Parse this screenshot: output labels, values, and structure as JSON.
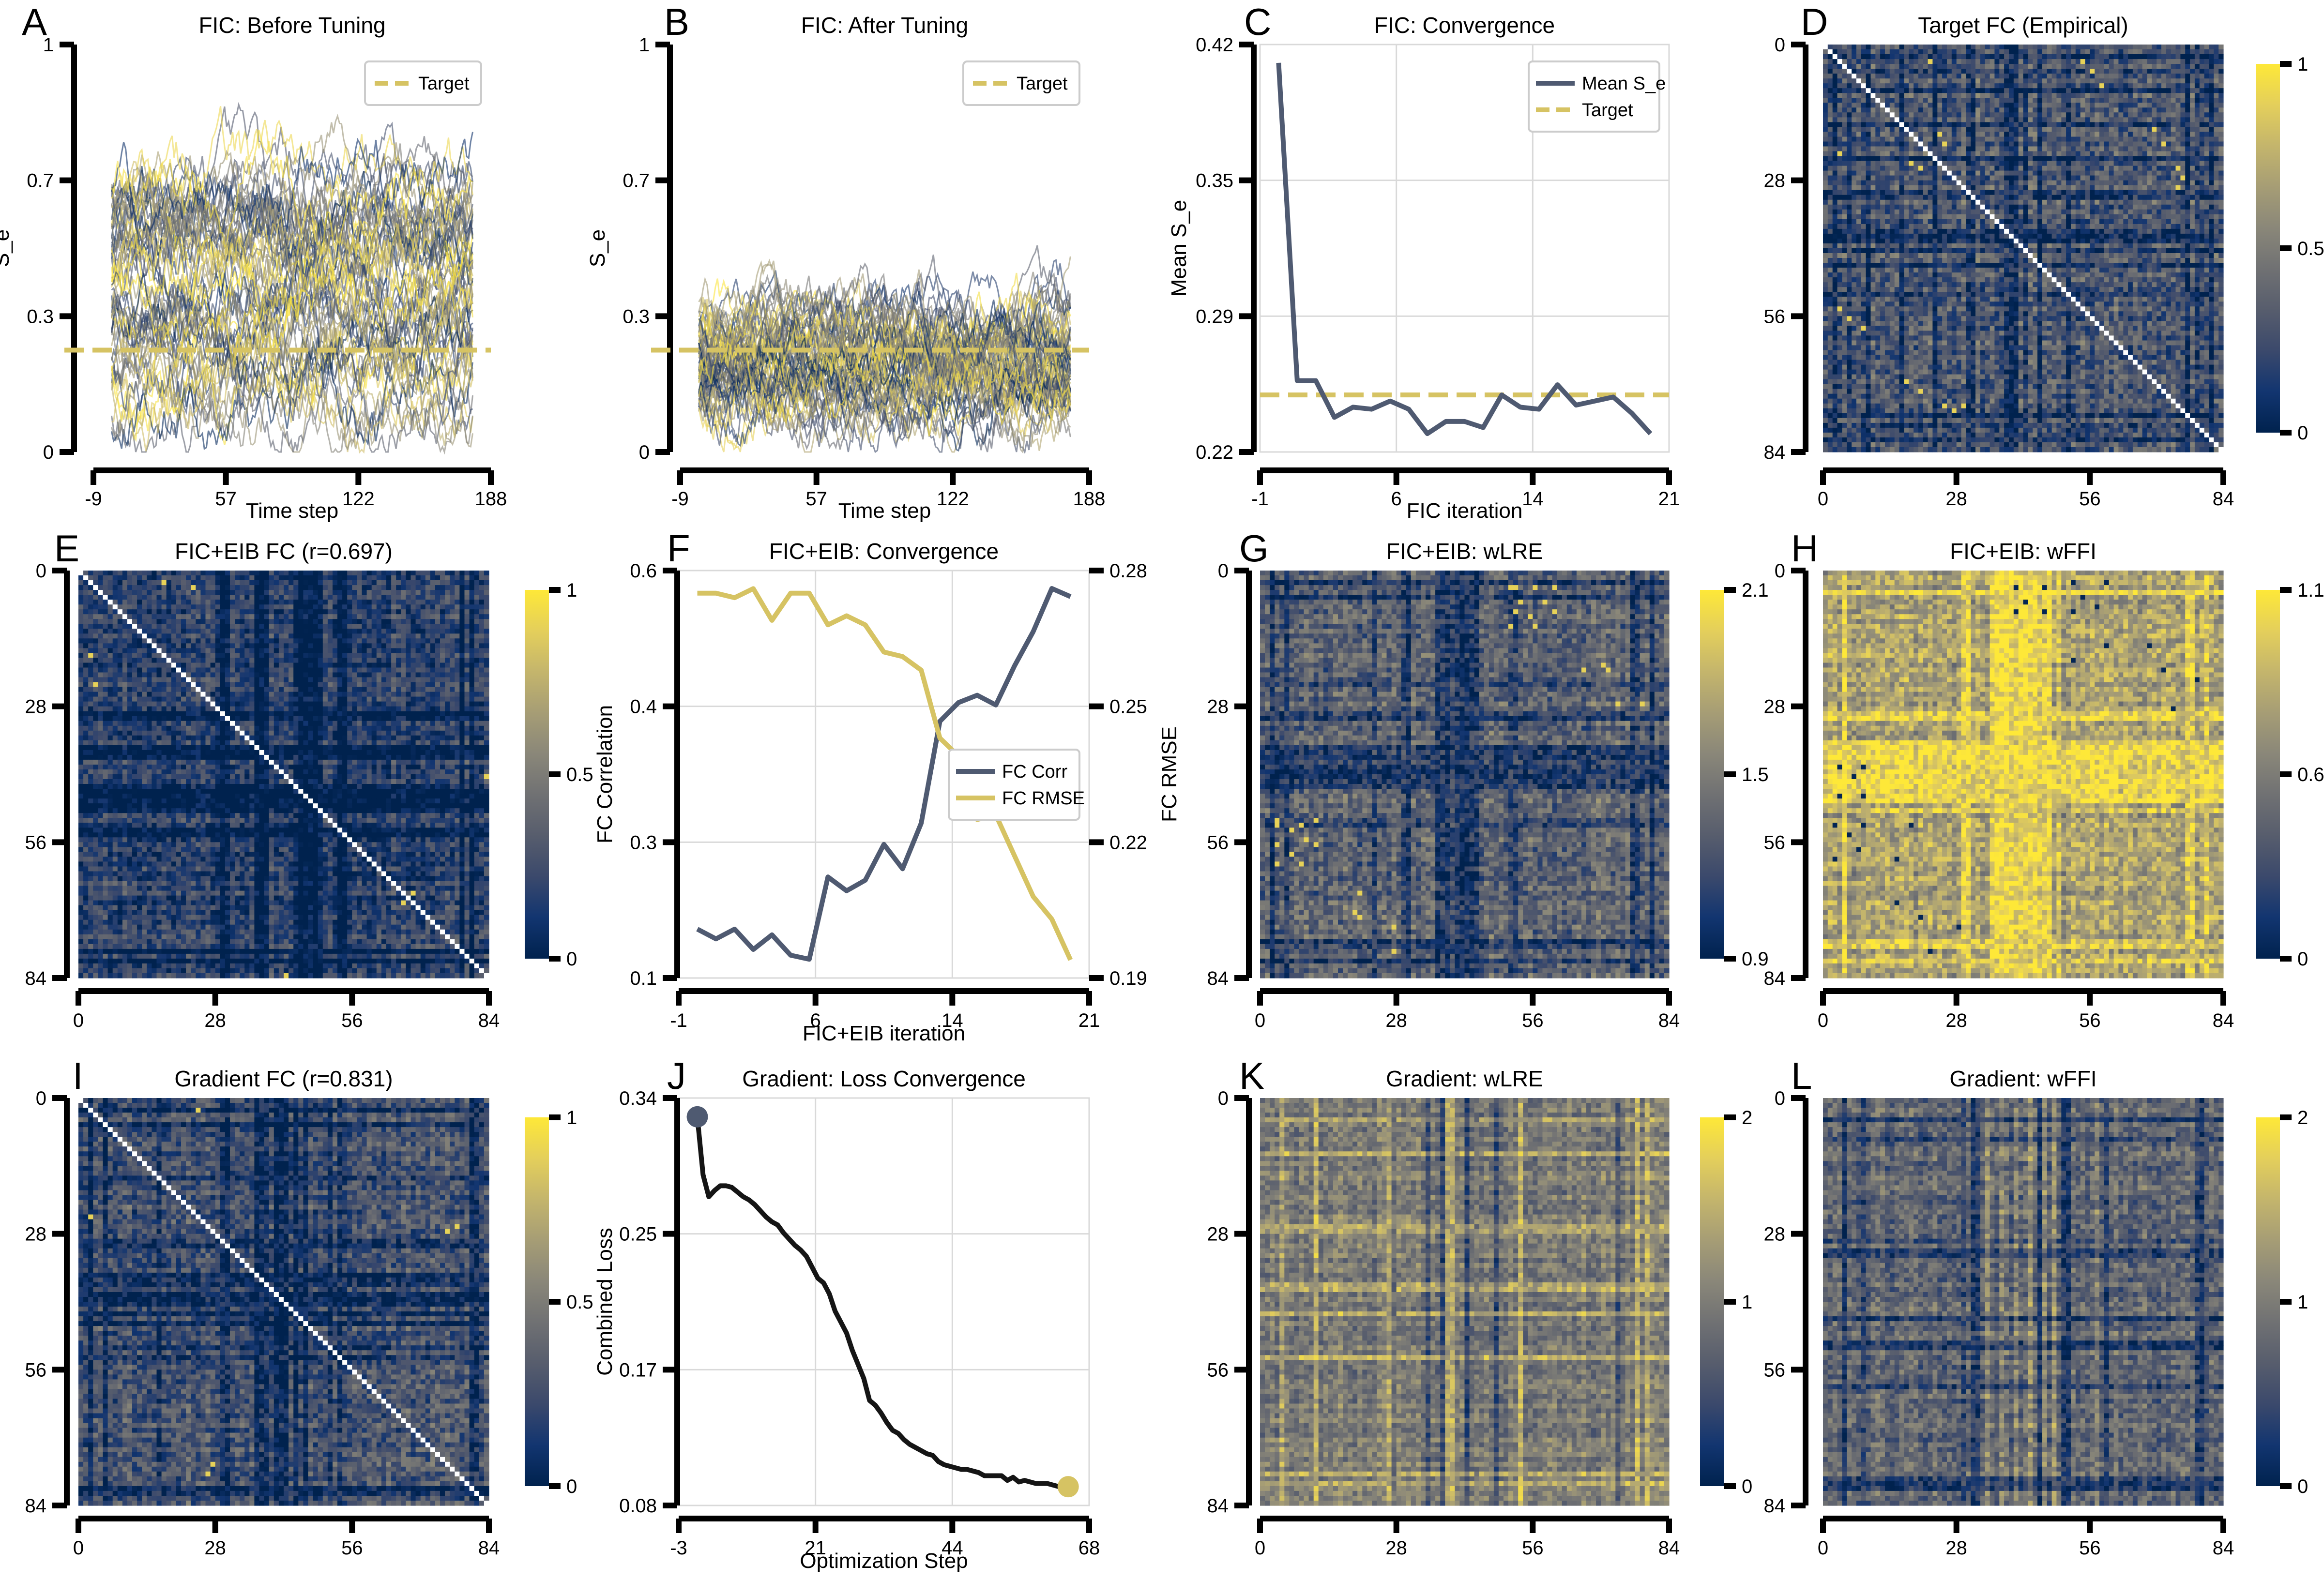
{
  "figure": {
    "panels": [
      "A",
      "B",
      "C",
      "D",
      "E",
      "F",
      "G",
      "H",
      "I",
      "J",
      "K",
      "L"
    ]
  },
  "colors": {
    "dark_slate": "#4f5a71",
    "gold": "#d6c363",
    "black_line": "#151515",
    "grid": "#d9d9d9",
    "cividis_stops": [
      "#00224e",
      "#123570",
      "#3b496c",
      "#575d6d",
      "#707173",
      "#8a8779",
      "#a69d75",
      "#c4b56c",
      "#e4cf5b",
      "#fee838"
    ]
  },
  "chart_data": [
    {
      "id": "A",
      "type": "line",
      "title": "FIC: Before Tuning",
      "xlabel": "Time step",
      "ylabel": "S_e",
      "xticks": [
        "-9",
        "57",
        "122",
        "188"
      ],
      "xlim": [
        -9,
        188
      ],
      "yticks": [
        "0",
        "0.3",
        "0.7",
        "1"
      ],
      "ylim": [
        0,
        1
      ],
      "n_traces": 68,
      "n_steps": 180,
      "trace_mean_range": [
        0.1,
        0.68
      ],
      "trace_noise": 0.045,
      "target": 0.25,
      "legend": [
        {
          "label": "Target",
          "style": "dashed",
          "color": "#d6c363"
        }
      ],
      "legend_position": "top-right",
      "grid": false
    },
    {
      "id": "B",
      "type": "line",
      "title": "FIC: After Tuning",
      "xlabel": "Time step",
      "ylabel": "S_e",
      "xticks": [
        "-9",
        "57",
        "122",
        "188"
      ],
      "xlim": [
        -9,
        188
      ],
      "yticks": [
        "0",
        "0.3",
        "0.7",
        "1"
      ],
      "ylim": [
        0,
        1
      ],
      "n_traces": 68,
      "n_steps": 180,
      "trace_mean_range": [
        0.12,
        0.33
      ],
      "trace_noise": 0.04,
      "target": 0.25,
      "legend": [
        {
          "label": "Target",
          "style": "dashed",
          "color": "#d6c363"
        }
      ],
      "legend_position": "top-right",
      "grid": false
    },
    {
      "id": "C",
      "type": "line",
      "title": "FIC: Convergence",
      "xlabel": "FIC iteration",
      "ylabel": "Mean S_e",
      "xticks": [
        "-1",
        "6",
        "14",
        "21"
      ],
      "xlim": [
        -1,
        21
      ],
      "yticks": [
        "0.22",
        "0.29",
        "0.35",
        "0.42"
      ],
      "ylim": [
        0.22,
        0.42
      ],
      "grid": true,
      "series": [
        {
          "name": "Mean S_e",
          "color": "#4f5a71",
          "style": "solid",
          "x": [
            0,
            1,
            2,
            3,
            4,
            5,
            6,
            7,
            8,
            9,
            10,
            11,
            12,
            13,
            14,
            15,
            16,
            17,
            18,
            19,
            20
          ],
          "values": [
            0.411,
            0.255,
            0.255,
            0.237,
            0.242,
            0.241,
            0.245,
            0.241,
            0.229,
            0.235,
            0.235,
            0.232,
            0.248,
            0.242,
            0.241,
            0.253,
            0.243,
            0.245,
            0.247,
            0.239,
            0.229
          ]
        },
        {
          "name": "Target",
          "color": "#d6c363",
          "style": "dashed",
          "value": 0.248
        }
      ],
      "legend_position": "top-right"
    },
    {
      "id": "D",
      "type": "heatmap",
      "title": "Target FC (Empirical)",
      "xticks": [
        "0",
        "28",
        "56",
        "84"
      ],
      "yticks": [
        "0",
        "28",
        "56",
        "84"
      ],
      "size": 84,
      "vmin": 0,
      "vmax": 1,
      "colorbar_ticks": [
        "0",
        "0.5",
        "1"
      ],
      "colormap": "cividis",
      "white_diagonal": true,
      "base": 0.33,
      "noise": 0.2,
      "seed": 11,
      "dark_bands": [
        2,
        5,
        9,
        16,
        23,
        30,
        31,
        38,
        39,
        40,
        42,
        45,
        51,
        76,
        78,
        81
      ],
      "bright_spots": [
        [
          3,
          22
        ],
        [
          18,
          24
        ],
        [
          20,
          25
        ],
        [
          25,
          74
        ],
        [
          27,
          75
        ],
        [
          54,
          3
        ],
        [
          56,
          5
        ],
        [
          58,
          8
        ],
        [
          69,
          17
        ],
        [
          71,
          20
        ],
        [
          74,
          29
        ]
      ]
    },
    {
      "id": "E",
      "type": "heatmap",
      "title": "FIC+EIB FC (r=0.697)",
      "xticks": [
        "0",
        "28",
        "56",
        "84"
      ],
      "yticks": [
        "0",
        "28",
        "56",
        "84"
      ],
      "size": 84,
      "vmin": 0,
      "vmax": 1,
      "colorbar_ticks": [
        "0",
        "0.5",
        "1"
      ],
      "colormap": "cividis",
      "white_diagonal": true,
      "base": 0.2,
      "noise": 0.17,
      "seed": 23,
      "dark_bands": [
        29,
        30,
        36,
        37,
        38,
        44,
        45,
        46,
        47,
        48,
        49,
        53,
        54,
        78,
        80
      ],
      "bright_spots": [
        [
          2,
          17
        ],
        [
          23,
          3
        ],
        [
          42,
          83
        ],
        [
          68,
          66
        ],
        [
          84,
          31
        ]
      ]
    },
    {
      "id": "F",
      "type": "line",
      "title": "FIC+EIB: Convergence",
      "xlabel": "FIC+EIB iteration",
      "ylabel": "FC Correlation",
      "ylabel_right": "FC RMSE",
      "xticks": [
        "-1",
        "6",
        "14",
        "21"
      ],
      "xlim": [
        -1,
        21
      ],
      "yticks": [
        "0.1",
        "0.3",
        "0.4",
        "0.6"
      ],
      "ylim": [
        0.1,
        0.6
      ],
      "yticks_right": [
        "0.19",
        "0.22",
        "0.25",
        "0.28"
      ],
      "ylim_right": [
        0.19,
        0.28
      ],
      "grid": true,
      "series": [
        {
          "name": "FC Corr",
          "axis": "left",
          "color": "#4f5a71",
          "x": [
            0,
            1,
            2,
            3,
            4,
            5,
            6,
            7,
            8,
            9,
            10,
            11,
            12,
            13,
            14,
            15,
            16,
            17,
            18,
            19,
            20
          ],
          "values": [
            0.16,
            0.148,
            0.16,
            0.135,
            0.153,
            0.128,
            0.123,
            0.224,
            0.207,
            0.22,
            0.264,
            0.234,
            0.29,
            0.415,
            0.438,
            0.447,
            0.435,
            0.483,
            0.525,
            0.578,
            0.568
          ]
        },
        {
          "name": "FC RMSE",
          "axis": "right",
          "color": "#d6c363",
          "x": [
            0,
            1,
            2,
            3,
            4,
            5,
            6,
            7,
            8,
            9,
            10,
            11,
            12,
            13,
            14,
            15,
            16,
            17,
            18,
            19,
            20
          ],
          "values": [
            0.275,
            0.275,
            0.274,
            0.276,
            0.269,
            0.275,
            0.275,
            0.268,
            0.27,
            0.268,
            0.262,
            0.261,
            0.258,
            0.243,
            0.239,
            0.225,
            0.226,
            0.217,
            0.208,
            0.203,
            0.194
          ]
        }
      ],
      "legend_position": "center-right"
    },
    {
      "id": "G",
      "type": "heatmap",
      "title": "FIC+EIB: wLRE",
      "xticks": [
        "0",
        "28",
        "56",
        "84"
      ],
      "yticks": [
        "0",
        "28",
        "56",
        "84"
      ],
      "size": 84,
      "vmin": 0.9,
      "vmax": 2.1,
      "colorbar_ticks": [
        "0.9",
        "1.5",
        "2.1"
      ],
      "colormap": "cividis",
      "white_diagonal": false,
      "base": 0.38,
      "noise": 0.18,
      "seed": 37,
      "dark_bands": [
        2,
        5,
        23,
        29,
        30,
        36,
        37,
        38,
        39,
        40,
        41,
        42,
        43,
        44,
        51,
        52,
        76,
        77,
        80
      ],
      "bright_spots": [
        [
          3,
          52
        ],
        [
          3,
          60
        ],
        [
          8,
          52
        ],
        [
          8,
          60
        ],
        [
          6,
          58
        ],
        [
          20,
          66
        ],
        [
          27,
          73
        ],
        [
          51,
          3
        ],
        [
          51,
          11
        ],
        [
          53,
          6
        ],
        [
          55,
          9
        ],
        [
          56,
          3
        ],
        [
          56,
          11
        ],
        [
          70,
          19
        ],
        [
          71,
          20
        ],
        [
          78,
          27
        ]
      ]
    },
    {
      "id": "H",
      "type": "heatmap",
      "title": "FIC+EIB: wFFI",
      "xticks": [
        "0",
        "28",
        "56",
        "84"
      ],
      "yticks": [
        "0",
        "28",
        "56",
        "84"
      ],
      "size": 84,
      "vmin": 0,
      "vmax": 1.1,
      "colorbar_ticks": [
        "0",
        "0.6",
        "1.1"
      ],
      "colormap": "cividis",
      "white_diagonal": false,
      "base": 0.66,
      "noise": 0.18,
      "seed": 41,
      "bright_bands": [
        4,
        29,
        30,
        35,
        36,
        37,
        38,
        39,
        40,
        41,
        42,
        43,
        44,
        45,
        46,
        47,
        49,
        76,
        77,
        80
      ],
      "dark_spots": [
        [
          3,
          40
        ],
        [
          3,
          46
        ],
        [
          6,
          42
        ],
        [
          8,
          40
        ],
        [
          8,
          46
        ],
        [
          18,
          52
        ],
        [
          28,
          73
        ],
        [
          52,
          2
        ],
        [
          52,
          8
        ],
        [
          54,
          5
        ],
        [
          57,
          7
        ],
        [
          59,
          2
        ],
        [
          59,
          15
        ],
        [
          68,
          15
        ],
        [
          71,
          20
        ],
        [
          78,
          22
        ]
      ]
    },
    {
      "id": "I",
      "type": "heatmap",
      "title": "Gradient FC (r=0.831)",
      "xticks": [
        "0",
        "28",
        "56",
        "84"
      ],
      "yticks": [
        "0",
        "28",
        "56",
        "84"
      ],
      "size": 84,
      "vmin": 0,
      "vmax": 1,
      "colorbar_ticks": [
        "0",
        "0.5",
        "1"
      ],
      "colormap": "cividis",
      "white_diagonal": true,
      "base": 0.3,
      "noise": 0.18,
      "seed": 53,
      "dark_bands": [
        2,
        5,
        16,
        29,
        30,
        36,
        37,
        38,
        40,
        41,
        42,
        44,
        46,
        51,
        53,
        80,
        81
      ],
      "bright_spots": [
        [
          27,
          75
        ],
        [
          77,
          26
        ],
        [
          2,
          24
        ]
      ]
    },
    {
      "id": "J",
      "type": "line",
      "title": "Gradient: Loss Convergence",
      "xlabel": "Optimization Step",
      "ylabel": "Combined Loss",
      "xticks": [
        "-3",
        "21",
        "44",
        "68"
      ],
      "xlim": [
        -3.25,
        68.25
      ],
      "yticks": [
        "0.08",
        "0.17",
        "0.25",
        "0.34"
      ],
      "ylim": [
        0.08,
        0.34
      ],
      "grid": true,
      "series": [
        {
          "name": "Combined Loss",
          "color": "#151515",
          "values": [
            0.328,
            0.291,
            0.277,
            0.281,
            0.284,
            0.284,
            0.283,
            0.28,
            0.277,
            0.275,
            0.272,
            0.268,
            0.264,
            0.261,
            0.259,
            0.254,
            0.25,
            0.246,
            0.243,
            0.239,
            0.232,
            0.225,
            0.222,
            0.215,
            0.204,
            0.197,
            0.19,
            0.179,
            0.17,
            0.161,
            0.147,
            0.144,
            0.139,
            0.133,
            0.128,
            0.126,
            0.122,
            0.119,
            0.117,
            0.115,
            0.113,
            0.112,
            0.108,
            0.106,
            0.105,
            0.104,
            0.103,
            0.103,
            0.102,
            0.101,
            0.099,
            0.099,
            0.099,
            0.099,
            0.096,
            0.098,
            0.095,
            0.096,
            0.095,
            0.094,
            0.094,
            0.094,
            0.093,
            0.092,
            0.092
          ]
        }
      ],
      "markers": [
        {
          "name": "start",
          "step": 0,
          "value": 0.328,
          "color": "#4f5a71"
        },
        {
          "name": "end",
          "step": 64.6,
          "value": 0.092,
          "color": "#d6c363"
        }
      ]
    },
    {
      "id": "K",
      "type": "heatmap",
      "title": "Gradient: wLRE",
      "xticks": [
        "0",
        "28",
        "56",
        "84"
      ],
      "yticks": [
        "0",
        "28",
        "56",
        "84"
      ],
      "size": 84,
      "vmin": 0,
      "vmax": 2,
      "colorbar_ticks": [
        "0",
        "1",
        "2"
      ],
      "colormap": "cividis",
      "white_diagonal": false,
      "base": 0.5,
      "noise": 0.14,
      "seed": 67,
      "bright_bands": [
        4,
        11,
        26,
        27,
        38,
        39,
        44,
        53,
        77,
        79
      ],
      "dark_cols": [
        27,
        34,
        37,
        42,
        44,
        48,
        73
      ]
    },
    {
      "id": "L",
      "type": "heatmap",
      "title": "Gradient: wFFI",
      "xticks": [
        "0",
        "28",
        "56",
        "84"
      ],
      "yticks": [
        "0",
        "28",
        "56",
        "84"
      ],
      "size": 84,
      "vmin": 0,
      "vmax": 2,
      "colorbar_ticks": [
        "0",
        "1",
        "2"
      ],
      "colormap": "cividis",
      "white_diagonal": false,
      "base": 0.4,
      "noise": 0.16,
      "seed": 79,
      "dark_bands": [
        4,
        8,
        29,
        31,
        32,
        45,
        50,
        51,
        59,
        78,
        79,
        80
      ],
      "bright_cols": [
        34,
        37,
        40,
        43,
        46,
        48,
        57,
        80
      ]
    }
  ]
}
